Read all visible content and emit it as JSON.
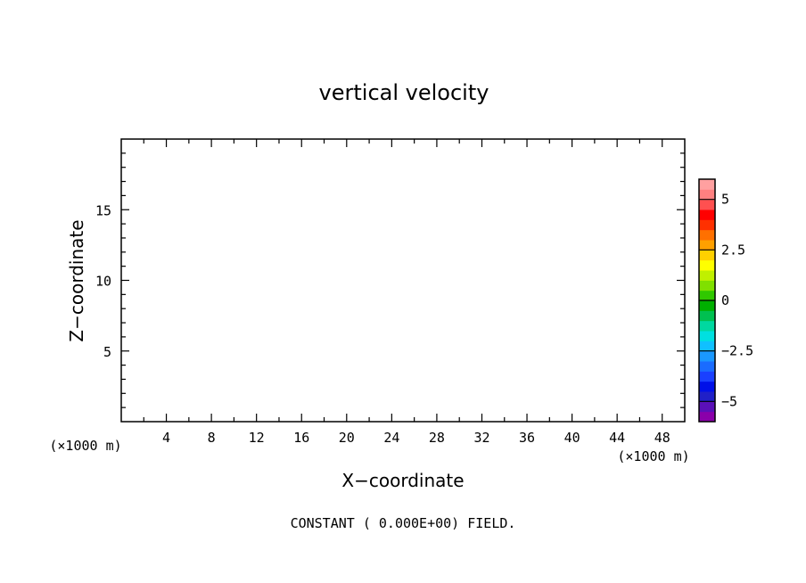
{
  "chart_data": {
    "type": "heatmap",
    "title": "vertical velocity",
    "xlabel": "X−coordinate",
    "ylabel": "Z−coordinate",
    "x_unit": "(×1000 m)",
    "z_unit": "(×1000 m)",
    "xlim": [
      0,
      50
    ],
    "ylim": [
      0,
      20
    ],
    "x_ticks": [
      4,
      8,
      12,
      16,
      20,
      24,
      28,
      32,
      36,
      40,
      44,
      48
    ],
    "y_ticks": [
      5,
      10,
      15
    ],
    "field_value": 0.0,
    "footnote": "CONSTANT ( 0.000E+00) FIELD.",
    "colorbar": {
      "range": [
        -6,
        6
      ],
      "labels": [
        5,
        2.5,
        0,
        -2.5,
        -5
      ],
      "label_text": [
        "5",
        "2.5",
        "0",
        "−2.5",
        "−5"
      ],
      "colors": [
        "#8a00aa",
        "#5a10b8",
        "#2020c8",
        "#0010e8",
        "#1a40ff",
        "#1a6cff",
        "#1a98ff",
        "#10c0ff",
        "#00e0e0",
        "#00d8a0",
        "#00c050",
        "#00b000",
        "#30c800",
        "#80e000",
        "#c0f000",
        "#ffff00",
        "#ffd000",
        "#ffa000",
        "#ff7000",
        "#ff3000",
        "#ff0000",
        "#ff5050",
        "#ff8080",
        "#ffa0a0"
      ]
    }
  }
}
